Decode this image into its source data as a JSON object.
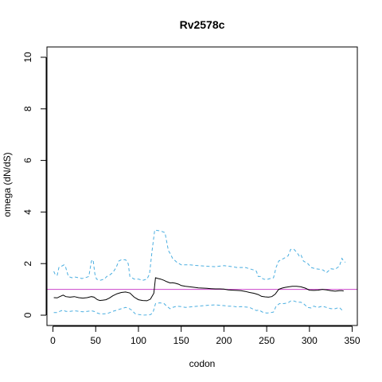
{
  "chart_data": {
    "type": "line",
    "title": "Rv2578c",
    "xlabel": "codon",
    "ylabel": "omega (dN/dS)",
    "xlim": [
      -7,
      356
    ],
    "ylim": [
      -0.4,
      10.4
    ],
    "xticks": [
      0,
      50,
      100,
      150,
      200,
      250,
      300,
      350
    ],
    "yticks": [
      0,
      2,
      4,
      6,
      8,
      10
    ],
    "grid": false,
    "legend": "none",
    "reference_line": {
      "y": 1,
      "color": "#cc44cc"
    },
    "series": [
      {
        "role": "estimate",
        "color": "#000000",
        "style": "solid",
        "points": [
          [
            1,
            0.68
          ],
          [
            5,
            0.67
          ],
          [
            8,
            0.72
          ],
          [
            12,
            0.78
          ],
          [
            15,
            0.72
          ],
          [
            20,
            0.7
          ],
          [
            25,
            0.72
          ],
          [
            30,
            0.68
          ],
          [
            35,
            0.66
          ],
          [
            40,
            0.68
          ],
          [
            45,
            0.72
          ],
          [
            48,
            0.7
          ],
          [
            52,
            0.6
          ],
          [
            55,
            0.57
          ],
          [
            58,
            0.58
          ],
          [
            62,
            0.6
          ],
          [
            66,
            0.66
          ],
          [
            70,
            0.75
          ],
          [
            75,
            0.83
          ],
          [
            80,
            0.88
          ],
          [
            85,
            0.9
          ],
          [
            90,
            0.86
          ],
          [
            95,
            0.7
          ],
          [
            100,
            0.6
          ],
          [
            105,
            0.57
          ],
          [
            110,
            0.56
          ],
          [
            114,
            0.62
          ],
          [
            118,
            0.85
          ],
          [
            120,
            1.45
          ],
          [
            123,
            1.42
          ],
          [
            126,
            1.4
          ],
          [
            130,
            1.35
          ],
          [
            133,
            1.3
          ],
          [
            137,
            1.25
          ],
          [
            140,
            1.26
          ],
          [
            143,
            1.24
          ],
          [
            147,
            1.2
          ],
          [
            150,
            1.15
          ],
          [
            155,
            1.12
          ],
          [
            160,
            1.1
          ],
          [
            165,
            1.08
          ],
          [
            170,
            1.06
          ],
          [
            175,
            1.05
          ],
          [
            180,
            1.04
          ],
          [
            185,
            1.03
          ],
          [
            190,
            1.02
          ],
          [
            195,
            1.02
          ],
          [
            200,
            1.01
          ],
          [
            205,
            0.98
          ],
          [
            210,
            0.97
          ],
          [
            215,
            0.96
          ],
          [
            220,
            0.95
          ],
          [
            225,
            0.92
          ],
          [
            230,
            0.88
          ],
          [
            235,
            0.85
          ],
          [
            240,
            0.8
          ],
          [
            244,
            0.73
          ],
          [
            248,
            0.71
          ],
          [
            252,
            0.7
          ],
          [
            256,
            0.72
          ],
          [
            260,
            0.82
          ],
          [
            264,
            1.0
          ],
          [
            268,
            1.05
          ],
          [
            272,
            1.08
          ],
          [
            276,
            1.1
          ],
          [
            280,
            1.12
          ],
          [
            285,
            1.12
          ],
          [
            290,
            1.1
          ],
          [
            295,
            1.05
          ],
          [
            300,
            0.97
          ],
          [
            305,
            0.96
          ],
          [
            310,
            0.97
          ],
          [
            315,
            1.0
          ],
          [
            320,
            0.98
          ],
          [
            325,
            0.95
          ],
          [
            330,
            0.93
          ],
          [
            335,
            0.95
          ],
          [
            338,
            0.95
          ],
          [
            340,
            0.94
          ]
        ]
      },
      {
        "role": "upper-bound",
        "color": "#4aaee0",
        "style": "dashed",
        "points": [
          [
            1,
            1.7
          ],
          [
            3,
            1.55
          ],
          [
            5,
            1.55
          ],
          [
            7,
            1.85
          ],
          [
            10,
            1.9
          ],
          [
            13,
            1.95
          ],
          [
            15,
            1.85
          ],
          [
            18,
            1.5
          ],
          [
            22,
            1.45
          ],
          [
            26,
            1.48
          ],
          [
            30,
            1.45
          ],
          [
            34,
            1.42
          ],
          [
            38,
            1.45
          ],
          [
            42,
            1.5
          ],
          [
            45,
            2.1
          ],
          [
            47,
            2.15
          ],
          [
            49,
            1.6
          ],
          [
            51,
            1.4
          ],
          [
            55,
            1.35
          ],
          [
            60,
            1.4
          ],
          [
            63,
            1.5
          ],
          [
            66,
            1.55
          ],
          [
            70,
            1.65
          ],
          [
            74,
            1.85
          ],
          [
            77,
            2.1
          ],
          [
            80,
            2.15
          ],
          [
            85,
            2.15
          ],
          [
            88,
            2.0
          ],
          [
            90,
            1.5
          ],
          [
            95,
            1.4
          ],
          [
            100,
            1.4
          ],
          [
            105,
            1.35
          ],
          [
            110,
            1.4
          ],
          [
            113,
            1.6
          ],
          [
            116,
            2.5
          ],
          [
            119,
            3.3
          ],
          [
            123,
            3.28
          ],
          [
            127,
            3.25
          ],
          [
            131,
            3.2
          ],
          [
            135,
            2.5
          ],
          [
            137,
            2.4
          ],
          [
            140,
            2.2
          ],
          [
            145,
            2.05
          ],
          [
            150,
            1.95
          ],
          [
            160,
            1.95
          ],
          [
            170,
            1.92
          ],
          [
            180,
            1.9
          ],
          [
            190,
            1.88
          ],
          [
            200,
            1.92
          ],
          [
            205,
            1.9
          ],
          [
            210,
            1.88
          ],
          [
            215,
            1.85
          ],
          [
            220,
            1.85
          ],
          [
            225,
            1.85
          ],
          [
            230,
            1.8
          ],
          [
            235,
            1.75
          ],
          [
            238,
            1.7
          ],
          [
            240,
            1.5
          ],
          [
            243,
            1.5
          ],
          [
            246,
            1.4
          ],
          [
            250,
            1.38
          ],
          [
            254,
            1.42
          ],
          [
            258,
            1.45
          ],
          [
            261,
            1.85
          ],
          [
            264,
            2.1
          ],
          [
            270,
            2.2
          ],
          [
            275,
            2.3
          ],
          [
            278,
            2.55
          ],
          [
            282,
            2.55
          ],
          [
            286,
            2.4
          ],
          [
            288,
            2.3
          ],
          [
            290,
            2.35
          ],
          [
            293,
            2.1
          ],
          [
            298,
            2.0
          ],
          [
            302,
            1.85
          ],
          [
            307,
            1.8
          ],
          [
            312,
            1.78
          ],
          [
            316,
            1.75
          ],
          [
            320,
            1.65
          ],
          [
            325,
            1.8
          ],
          [
            330,
            1.78
          ],
          [
            335,
            1.9
          ],
          [
            338,
            2.2
          ],
          [
            340,
            2.1
          ],
          [
            342,
            2.05
          ]
        ]
      },
      {
        "role": "lower-bound",
        "color": "#4aaee0",
        "style": "dashed",
        "points": [
          [
            1,
            0.1
          ],
          [
            5,
            0.1
          ],
          [
            8,
            0.15
          ],
          [
            12,
            0.2
          ],
          [
            15,
            0.15
          ],
          [
            20,
            0.15
          ],
          [
            25,
            0.17
          ],
          [
            30,
            0.15
          ],
          [
            35,
            0.13
          ],
          [
            40,
            0.15
          ],
          [
            45,
            0.17
          ],
          [
            48,
            0.15
          ],
          [
            52,
            0.08
          ],
          [
            55,
            0.05
          ],
          [
            60,
            0.05
          ],
          [
            65,
            0.08
          ],
          [
            70,
            0.15
          ],
          [
            75,
            0.2
          ],
          [
            80,
            0.25
          ],
          [
            85,
            0.3
          ],
          [
            88,
            0.28
          ],
          [
            92,
            0.2
          ],
          [
            96,
            0.06
          ],
          [
            100,
            0.03
          ],
          [
            105,
            0.0
          ],
          [
            110,
            0.01
          ],
          [
            114,
            0.02
          ],
          [
            117,
            0.1
          ],
          [
            120,
            0.45
          ],
          [
            125,
            0.48
          ],
          [
            130,
            0.45
          ],
          [
            133,
            0.35
          ],
          [
            137,
            0.25
          ],
          [
            140,
            0.3
          ],
          [
            145,
            0.35
          ],
          [
            150,
            0.33
          ],
          [
            155,
            0.3
          ],
          [
            160,
            0.32
          ],
          [
            170,
            0.35
          ],
          [
            180,
            0.38
          ],
          [
            190,
            0.4
          ],
          [
            200,
            0.37
          ],
          [
            205,
            0.35
          ],
          [
            210,
            0.35
          ],
          [
            215,
            0.32
          ],
          [
            220,
            0.33
          ],
          [
            225,
            0.32
          ],
          [
            230,
            0.3
          ],
          [
            235,
            0.22
          ],
          [
            238,
            0.18
          ],
          [
            241,
            0.2
          ],
          [
            245,
            0.12
          ],
          [
            250,
            0.08
          ],
          [
            255,
            0.1
          ],
          [
            258,
            0.12
          ],
          [
            261,
            0.35
          ],
          [
            265,
            0.45
          ],
          [
            270,
            0.45
          ],
          [
            275,
            0.48
          ],
          [
            278,
            0.55
          ],
          [
            282,
            0.55
          ],
          [
            286,
            0.5
          ],
          [
            290,
            0.5
          ],
          [
            293,
            0.45
          ],
          [
            298,
            0.3
          ],
          [
            302,
            0.28
          ],
          [
            305,
            0.35
          ],
          [
            310,
            0.3
          ],
          [
            315,
            0.35
          ],
          [
            320,
            0.3
          ],
          [
            325,
            0.25
          ],
          [
            330,
            0.25
          ],
          [
            335,
            0.3
          ],
          [
            338,
            0.2
          ],
          [
            340,
            0.15
          ]
        ]
      }
    ]
  }
}
